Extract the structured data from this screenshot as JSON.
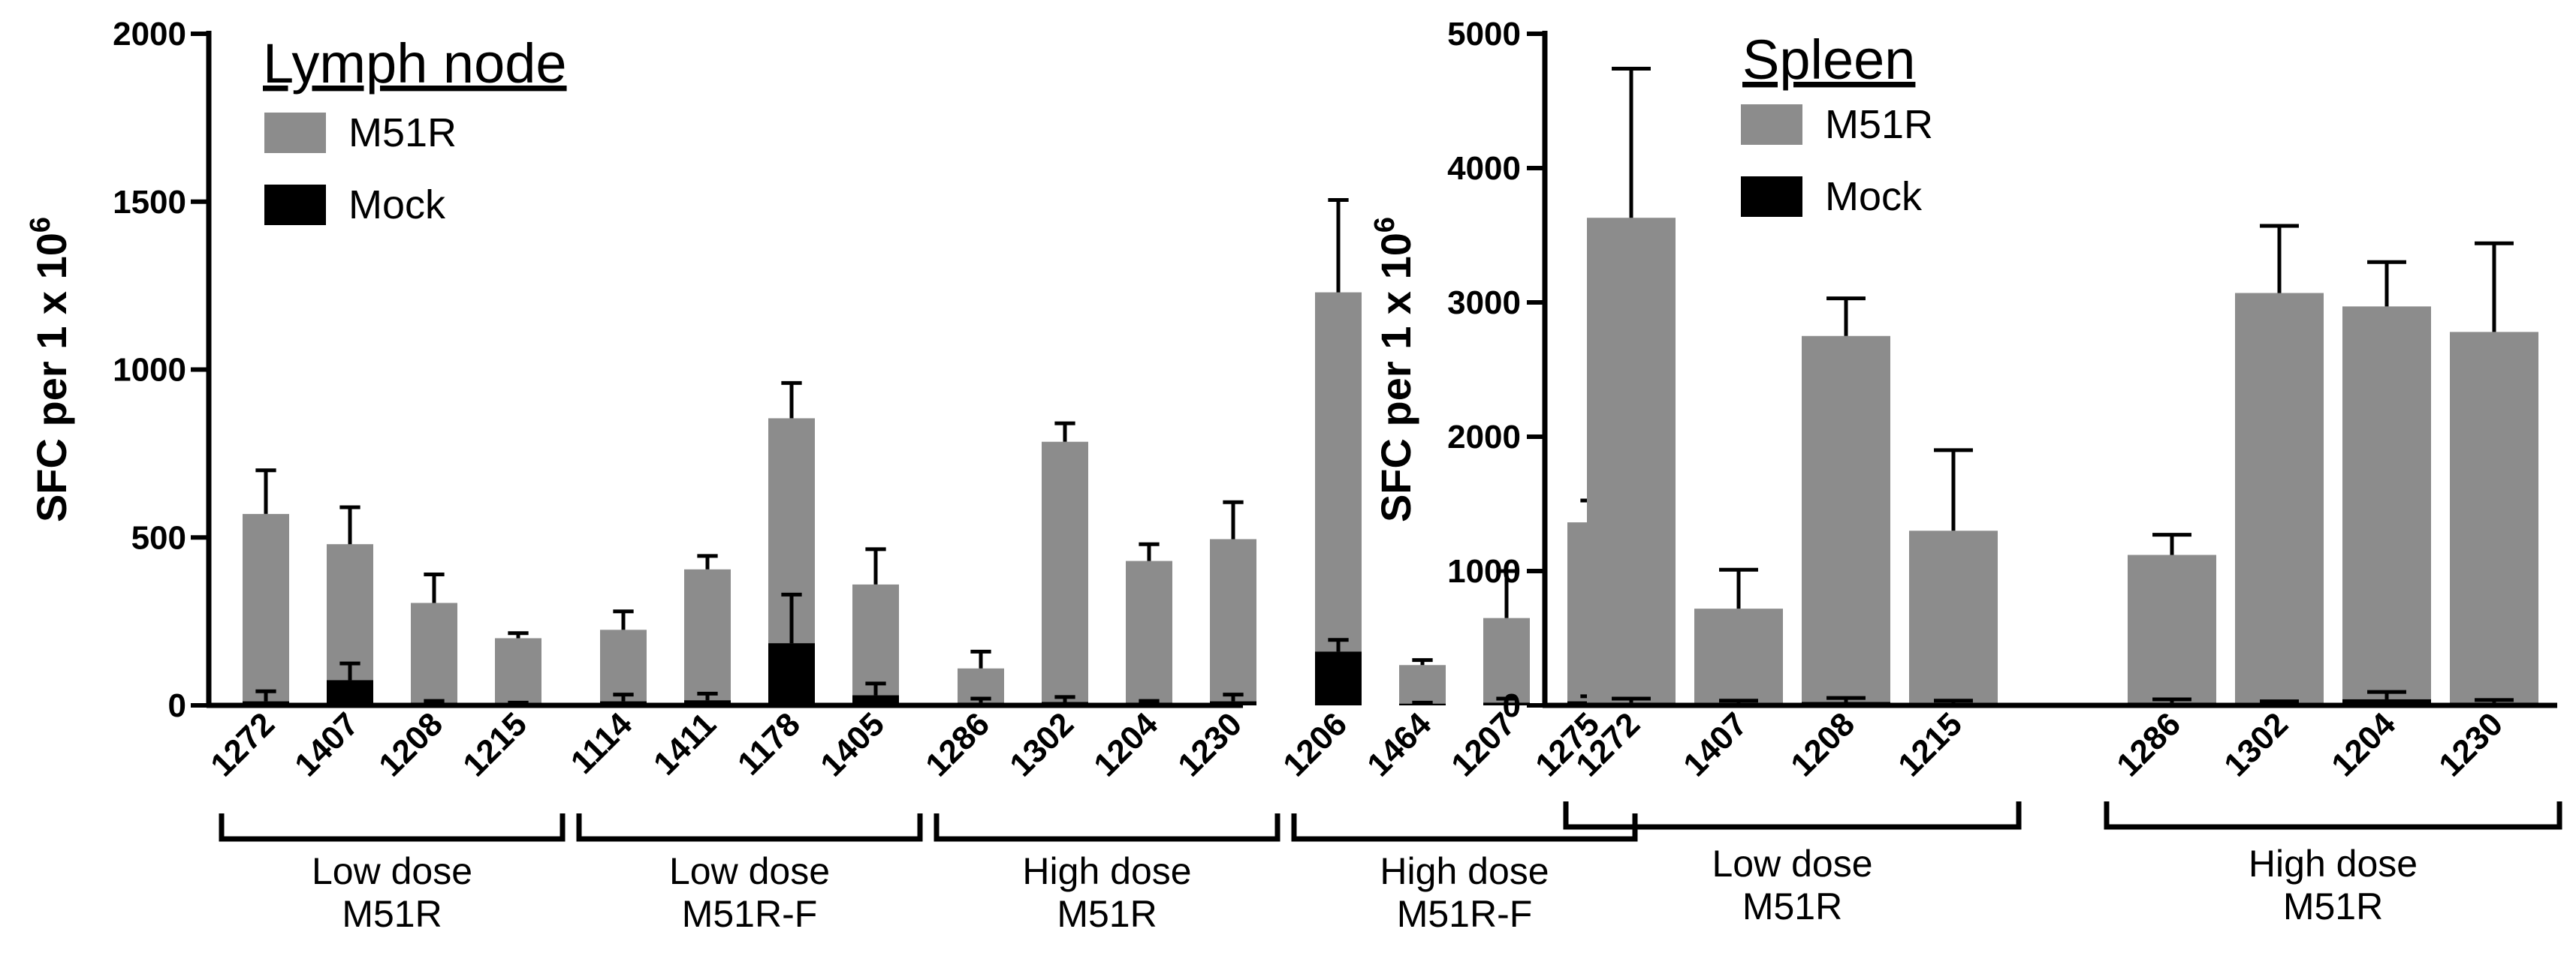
{
  "chart_data": [
    {
      "type": "bar",
      "title": "Lymph node",
      "ylabel": "SFC per 1 x 10",
      "ylabel_sup": "6",
      "ylim": [
        0,
        2000
      ],
      "yticks": [
        "0",
        "500",
        "1000",
        "1500",
        "2000"
      ],
      "ytick_values": [
        0,
        500,
        1000,
        1500,
        2000
      ],
      "legend": [
        {
          "label": "M51R",
          "color": "#8c8c8c"
        },
        {
          "label": "Mock",
          "color": "#000000"
        }
      ],
      "groups": [
        {
          "line1": "Low dose",
          "line2": "M51R",
          "categories": [
            "1272",
            "1407",
            "1208",
            "1215"
          ],
          "m51r": [
            570,
            480,
            305,
            200
          ],
          "m51r_err": [
            130,
            110,
            85,
            15
          ],
          "mock": [
            12,
            75,
            8,
            5
          ],
          "mock_err": [
            30,
            50,
            5,
            3
          ]
        },
        {
          "line1": "Low dose",
          "line2": "M51R-F",
          "categories": [
            "1114",
            "1411",
            "1178",
            "1405"
          ],
          "m51r": [
            225,
            405,
            855,
            360
          ],
          "m51r_err": [
            55,
            40,
            105,
            105
          ],
          "mock": [
            12,
            15,
            185,
            30
          ],
          "mock_err": [
            20,
            20,
            145,
            35
          ]
        },
        {
          "line1": "High dose",
          "line2": "M51R",
          "categories": [
            "1286",
            "1302",
            "1204",
            "1230"
          ],
          "m51r": [
            110,
            785,
            430,
            495
          ],
          "m51r_err": [
            50,
            55,
            50,
            110
          ],
          "mock": [
            8,
            10,
            8,
            12
          ],
          "mock_err": [
            12,
            15,
            5,
            20
          ]
        },
        {
          "line1": "High dose",
          "line2": "M51R-F",
          "categories": [
            "1206",
            "1464",
            "1207",
            "1275"
          ],
          "m51r": [
            1230,
            120,
            260,
            545
          ],
          "m51r_err": [
            275,
            15,
            140,
            65
          ],
          "mock": [
            160,
            5,
            8,
            12
          ],
          "mock_err": [
            35,
            3,
            12,
            15
          ]
        }
      ]
    },
    {
      "type": "bar",
      "title": "Spleen",
      "ylabel": "SFC per 1 x 10",
      "ylabel_sup": "6",
      "ylim": [
        0,
        5000
      ],
      "yticks": [
        "0",
        "1000",
        "2000",
        "3000",
        "4000",
        "5000"
      ],
      "ytick_values": [
        0,
        1000,
        2000,
        3000,
        4000,
        5000
      ],
      "legend": [
        {
          "label": "M51R",
          "color": "#8c8c8c"
        },
        {
          "label": "Mock",
          "color": "#000000"
        }
      ],
      "groups": [
        {
          "line1": "Low dose",
          "line2": "M51R",
          "categories": [
            "1272",
            "1407",
            "1208",
            "1215"
          ],
          "m51r": [
            3630,
            720,
            2750,
            1300
          ],
          "m51r_err": [
            1110,
            290,
            280,
            600
          ],
          "mock": [
            20,
            15,
            25,
            15
          ],
          "mock_err": [
            30,
            20,
            30,
            20
          ]
        },
        {
          "line1": "High dose",
          "line2": "M51R",
          "categories": [
            "1286",
            "1302",
            "1204",
            "1230"
          ],
          "m51r": [
            1120,
            3070,
            2970,
            2780
          ],
          "m51r_err": [
            150,
            500,
            330,
            660
          ],
          "mock": [
            20,
            15,
            45,
            20
          ],
          "mock_err": [
            25,
            15,
            55,
            20
          ]
        }
      ]
    }
  ]
}
